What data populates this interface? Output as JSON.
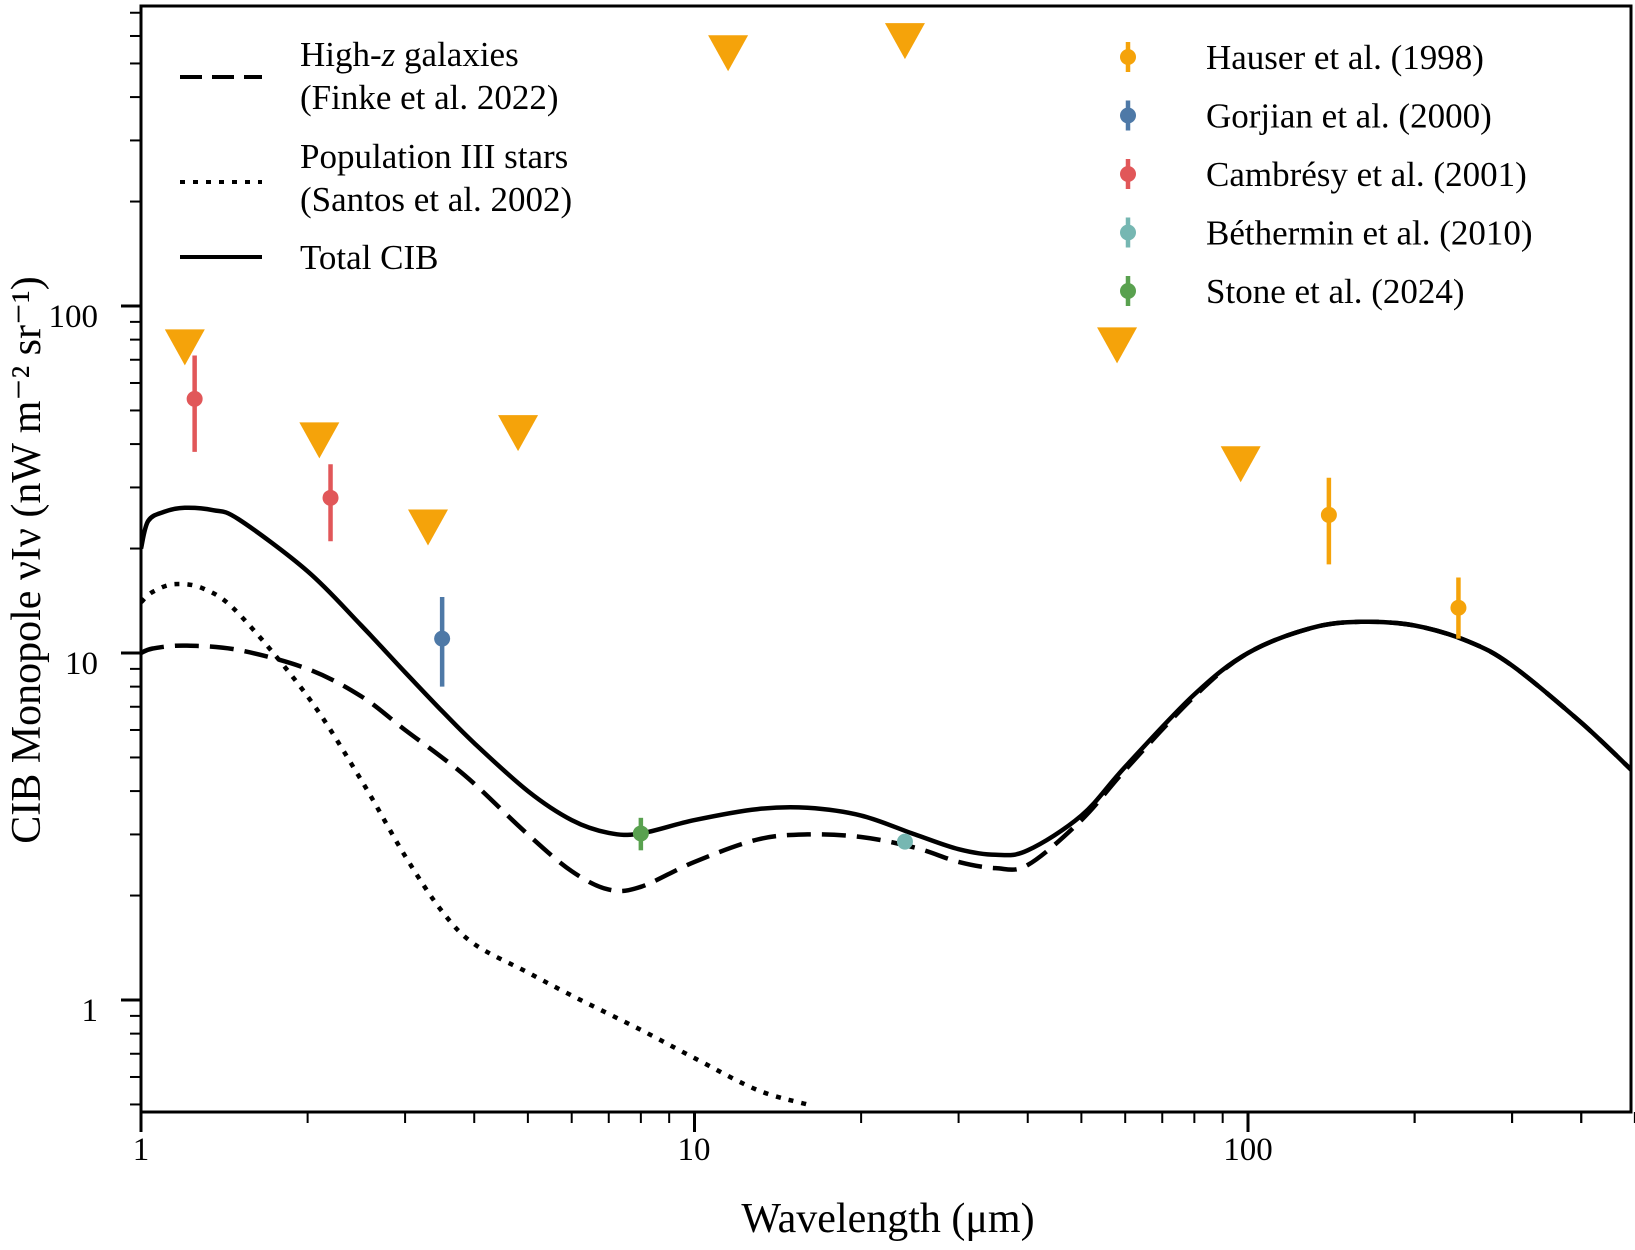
{
  "chart_data": {
    "type": "line",
    "xlabel": "Wavelength (μm)",
    "ylabel": "CIB Monopole νIν (nW m⁻² sr⁻¹)",
    "xscale": "log",
    "yscale": "log",
    "xlim": [
      1,
      500
    ],
    "ylim": [
      0.5,
      1000
    ],
    "x_tick_labels": [
      "1",
      "10",
      "100"
    ],
    "y_tick_labels": [
      "1",
      "10",
      "100"
    ],
    "x_major_ticks": [
      1,
      10,
      100
    ],
    "y_major_ticks": [
      1,
      10,
      100
    ],
    "grid": false,
    "legend_left_placement": "top-left",
    "legend_right_placement": "top-right",
    "models": [
      {
        "name": "High-z galaxies\n(Finke et al. 2022)",
        "label_line1": "High-",
        "label_italic": "z",
        "label_line1_rest": " galaxies",
        "label_line2": "(Finke et al. 2022)",
        "style": "dashed",
        "color": "#000000",
        "x": [
          1.0,
          1.05,
          1.2,
          1.5,
          2.0,
          2.5,
          3.0,
          3.5,
          4.0,
          5.0,
          6.0,
          7.0,
          8.0,
          10.0,
          13.0,
          16.0,
          20.0,
          25.0,
          30.0,
          35.0,
          40.0,
          50.0,
          60.0,
          80.0,
          100.0,
          130.0,
          160.0,
          200.0,
          250.0,
          300.0,
          400.0,
          500.0
        ],
        "y": [
          10.0,
          10.3,
          10.5,
          10.2,
          9.0,
          7.5,
          6.0,
          5.0,
          4.2,
          3.0,
          2.35,
          2.08,
          2.12,
          2.5,
          2.9,
          3.0,
          2.95,
          2.75,
          2.5,
          2.4,
          2.45,
          3.3,
          4.6,
          7.5,
          10.0,
          11.8,
          12.3,
          12.0,
          10.8,
          9.2,
          6.3,
          4.5
        ]
      },
      {
        "name": "Population III stars\n(Santos et al. 2002)",
        "label_line1": "Population III stars",
        "label_line2": "(Santos et al. 2002)",
        "style": "dotted",
        "color": "#000000",
        "x": [
          1.0,
          1.05,
          1.15,
          1.3,
          1.5,
          2.0,
          2.5,
          3.0,
          3.5,
          4.0,
          5.0,
          6.0,
          8.0,
          10.0,
          13.0,
          16.0
        ],
        "y": [
          14.0,
          15.0,
          15.8,
          15.3,
          13.0,
          7.5,
          4.3,
          2.6,
          1.8,
          1.45,
          1.2,
          1.03,
          0.82,
          0.68,
          0.55,
          0.5
        ]
      },
      {
        "name": "Total CIB",
        "label_line1": "Total CIB",
        "style": "solid",
        "color": "#000000",
        "x": [
          1.0,
          1.03,
          1.1,
          1.2,
          1.35,
          1.5,
          2.0,
          2.5,
          3.0,
          3.5,
          4.0,
          5.0,
          6.0,
          7.0,
          8.0,
          10.0,
          13.0,
          16.0,
          20.0,
          25.0,
          30.0,
          35.0,
          40.0,
          50.0,
          60.0,
          80.0,
          100.0,
          130.0,
          160.0,
          200.0,
          250.0,
          300.0,
          400.0,
          500.0
        ],
        "y": [
          20.0,
          24.0,
          25.5,
          26.2,
          25.8,
          24.3,
          17.2,
          12.0,
          8.8,
          6.8,
          5.5,
          4.0,
          3.3,
          3.03,
          3.02,
          3.3,
          3.55,
          3.58,
          3.4,
          3.0,
          2.72,
          2.62,
          2.7,
          3.4,
          4.7,
          7.6,
          10.0,
          11.8,
          12.3,
          12.0,
          10.8,
          9.2,
          6.3,
          4.5
        ]
      }
    ],
    "measurements": [
      {
        "name": "Hauser et al. (1998)",
        "color": "#f5a30a",
        "x": [
          140,
          240
        ],
        "y": [
          25,
          13.5
        ],
        "yerr_low": [
          18,
          11
        ],
        "yerr_high": [
          32,
          16.5
        ]
      },
      {
        "name": "Gorjian et al. (2000)",
        "color": "#4e79a7",
        "x": [
          3.5
        ],
        "y": [
          11
        ],
        "yerr_low": [
          8
        ],
        "yerr_high": [
          14.5
        ]
      },
      {
        "name": "Cambrésy et al. (2001)",
        "color": "#e15759",
        "x": [
          1.25,
          2.2
        ],
        "y": [
          54,
          28
        ],
        "yerr_low": [
          38,
          21
        ],
        "yerr_high": [
          72,
          35
        ]
      },
      {
        "name": "Béthermin et al. (2010)",
        "color": "#76b7b2",
        "x": [
          24
        ],
        "y": [
          2.86
        ],
        "yerr_low": [
          2.8
        ],
        "yerr_high": [
          2.92
        ]
      },
      {
        "name": "Stone et al. (2024)",
        "color": "#59a14f",
        "x": [
          8
        ],
        "y": [
          3.02
        ],
        "yerr_low": [
          2.7
        ],
        "yerr_high": [
          3.35
        ]
      }
    ],
    "upper_limits": {
      "color": "#f5a30a",
      "marker": "downward-triangle",
      "x": [
        1.2,
        2.1,
        3.3,
        4.8,
        11.5,
        24.0,
        58.0,
        97.0
      ],
      "y": [
        76,
        41,
        23,
        43,
        535,
        580,
        77,
        35
      ]
    }
  }
}
